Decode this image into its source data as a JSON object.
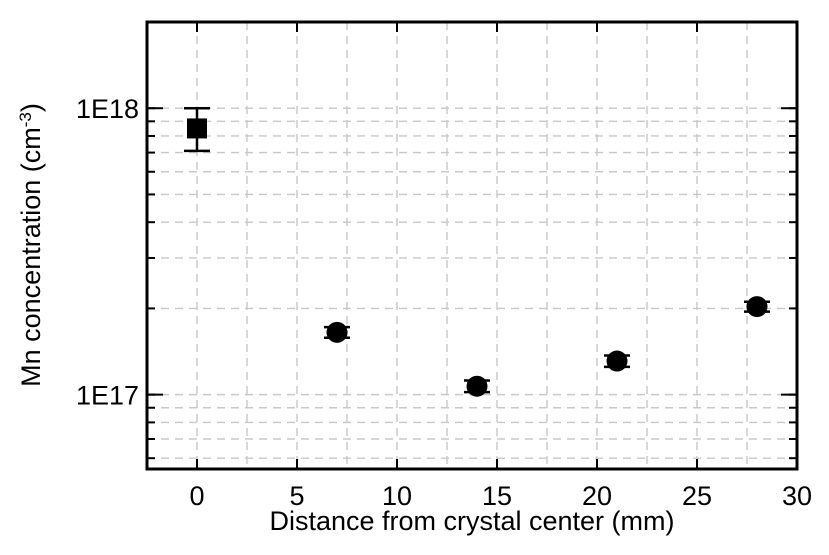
{
  "chart_data": {
    "type": "scatter",
    "xlabel": "Distance from crystal center (mm)",
    "ylabel": {
      "prefix": "Mn concentration (cm",
      "superscript": "-3",
      "suffix": ")"
    },
    "xlim": [
      -2.5,
      30
    ],
    "ylim": [
      5.5e+16,
      2e+18
    ],
    "yscale": "log",
    "grid": true,
    "x_ticks": [
      0,
      5,
      10,
      15,
      20,
      25,
      30
    ],
    "x_tick_labels": [
      "0",
      "5",
      "10",
      "15",
      "20",
      "25",
      "30"
    ],
    "y_major_ticks": [
      1e+17,
      1e+18
    ],
    "y_tick_labels": [
      "1E17",
      "1E18"
    ],
    "series": [
      {
        "marker": "square",
        "color": "#000000",
        "points": [
          {
            "x": 0,
            "y": 8.5e+17,
            "err_low": 7.1e+17,
            "err_high": 1e+18
          }
        ]
      },
      {
        "marker": "circle",
        "color": "#000000",
        "points": [
          {
            "x": 7,
            "y": 1.65e+17,
            "err_low": 1.58e+17,
            "err_high": 1.72e+17
          },
          {
            "x": 14,
            "y": 1.07e+17,
            "err_low": 1.02e+17,
            "err_high": 1.12e+17
          },
          {
            "x": 21,
            "y": 1.31e+17,
            "err_low": 1.25e+17,
            "err_high": 1.37e+17
          },
          {
            "x": 28,
            "y": 2.03e+17,
            "err_low": 1.95e+17,
            "err_high": 2.11e+17
          }
        ]
      }
    ]
  }
}
